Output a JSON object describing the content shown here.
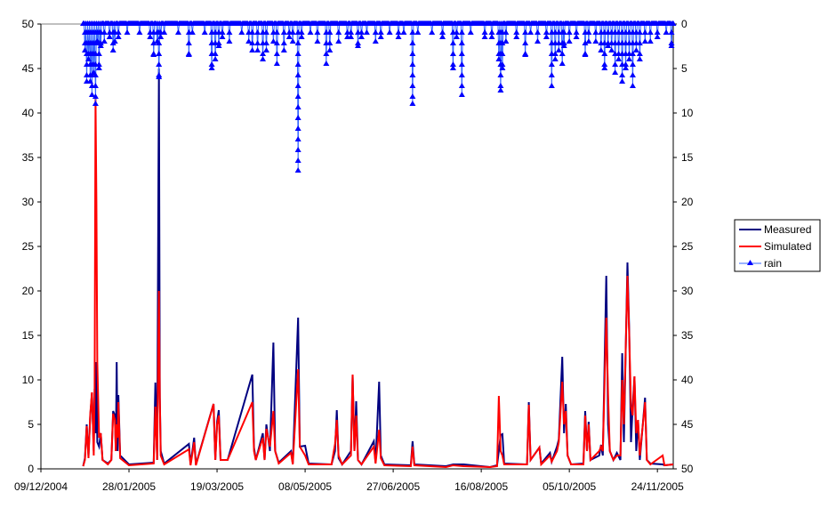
{
  "chart_data": {
    "type": "line",
    "title": "",
    "xlabel": "",
    "ylabel": "",
    "y2label": "",
    "x_unit": "days since 09/12/2004",
    "xlim": [
      0,
      359
    ],
    "ylim": [
      0,
      50
    ],
    "y2lim": [
      0,
      50
    ],
    "y2_inverted": true,
    "x_tick_values": [
      0,
      50,
      100,
      150,
      200,
      250,
      300,
      350
    ],
    "x_tick_labels": [
      "09/12/2004",
      "28/01/2005",
      "19/03/2005",
      "08/05/2005",
      "27/06/2005",
      "16/08/2005",
      "05/10/2005",
      "24/11/2005"
    ],
    "y_ticks": [
      "0",
      "5",
      "10",
      "15",
      "20",
      "25",
      "30",
      "35",
      "40",
      "45",
      "50"
    ],
    "y2_ticks": [
      "0",
      "5",
      "10",
      "15",
      "20",
      "25",
      "30",
      "35",
      "40",
      "45",
      "50"
    ],
    "grid": false,
    "legend_position": "right",
    "legend": [
      "Measured",
      "Simulated",
      "rain"
    ],
    "colors": {
      "measured": "#000080",
      "simulated": "#ff0000",
      "rain_line": "#3366ff",
      "rain_marker": "#0000ff"
    },
    "flow_points_day_measured_simulated": [
      [
        24,
        0.3,
        0.3
      ],
      [
        25,
        1.2,
        1.0
      ],
      [
        26,
        5,
        4.8
      ],
      [
        27,
        1.5,
        1.2
      ],
      [
        28,
        6,
        6.2
      ],
      [
        29,
        8.5,
        8.6
      ],
      [
        30,
        2,
        1.5
      ],
      [
        30.5,
        9,
        8.7
      ],
      [
        31,
        4,
        41.7
      ],
      [
        31.5,
        12,
        30
      ],
      [
        32,
        3,
        12
      ],
      [
        33,
        2.5,
        3.5
      ],
      [
        34,
        4,
        4
      ],
      [
        35,
        1,
        1
      ],
      [
        38,
        0.6,
        0.5
      ],
      [
        40,
        1,
        1
      ],
      [
        41,
        6.5,
        6.2
      ],
      [
        42,
        6,
        5.5
      ],
      [
        42.5,
        2,
        2
      ],
      [
        43,
        12,
        5
      ],
      [
        43.5,
        2,
        3.5
      ],
      [
        44,
        8.3,
        7.5
      ],
      [
        45,
        1.5,
        1.2
      ],
      [
        50,
        0.5,
        0.4
      ],
      [
        64,
        0.7,
        0.6
      ],
      [
        65,
        9.7,
        7
      ],
      [
        66,
        1,
        1
      ],
      [
        67,
        45,
        20
      ],
      [
        67.5,
        8,
        8
      ],
      [
        68,
        2,
        1.5
      ],
      [
        70,
        0.6,
        0.5
      ],
      [
        84,
        2.8,
        2.2
      ],
      [
        85,
        0.5,
        0.4
      ],
      [
        87,
        3.5,
        3
      ],
      [
        88,
        0.5,
        0.4
      ],
      [
        98,
        7.3,
        7.3
      ],
      [
        99,
        1,
        1
      ],
      [
        100,
        5.3,
        5
      ],
      [
        101,
        6.6,
        6
      ],
      [
        102,
        1,
        1
      ],
      [
        106,
        1,
        1
      ],
      [
        120,
        10.6,
        7.5
      ],
      [
        121,
        2.4,
        2
      ],
      [
        122,
        1,
        1
      ],
      [
        126,
        4,
        3.5
      ],
      [
        127,
        1,
        1
      ],
      [
        128,
        5,
        4.5
      ],
      [
        130,
        2,
        2.5
      ],
      [
        132,
        14.2,
        6.5
      ],
      [
        133,
        2,
        2
      ],
      [
        135,
        0.7,
        0.6
      ],
      [
        142,
        2,
        1.8
      ],
      [
        143,
        0.6,
        0.5
      ],
      [
        146,
        17,
        11.2
      ],
      [
        147,
        2.5,
        2.5
      ],
      [
        150,
        2.6,
        1.5
      ],
      [
        152,
        0.6,
        0.5
      ],
      [
        165,
        0.5,
        0.5
      ],
      [
        167,
        2,
        2.8
      ],
      [
        168,
        6.6,
        5.5
      ],
      [
        169,
        1.2,
        1.5
      ],
      [
        171,
        0.5,
        0.5
      ],
      [
        176,
        2,
        1.5
      ],
      [
        177,
        10.6,
        10.6
      ],
      [
        178,
        2,
        2
      ],
      [
        179,
        7.6,
        6
      ],
      [
        180,
        1,
        1
      ],
      [
        182,
        0.5,
        0.5
      ],
      [
        189,
        3.1,
        2.5
      ],
      [
        190,
        0.7,
        0.6
      ],
      [
        192,
        9.8,
        4.4
      ],
      [
        193,
        1.5,
        1.2
      ],
      [
        195,
        0.5,
        0.4
      ],
      [
        210,
        0.4,
        0.3
      ],
      [
        211,
        3.1,
        2.5
      ],
      [
        212,
        0.5,
        0.4
      ],
      [
        230,
        0.3,
        0.2
      ],
      [
        234,
        0.5,
        0.4
      ],
      [
        240,
        0.5,
        0.3
      ],
      [
        255,
        0.2,
        0.2
      ],
      [
        259,
        0.4,
        0.3
      ],
      [
        260,
        2,
        8.2
      ],
      [
        261,
        3.8,
        2
      ],
      [
        262,
        3.9,
        1.5
      ],
      [
        263,
        0.6,
        0.5
      ],
      [
        276,
        0.5,
        0.5
      ],
      [
        277,
        7.5,
        7.2
      ],
      [
        278,
        1,
        1
      ],
      [
        283,
        2.4,
        2.4
      ],
      [
        284,
        0.6,
        0.5
      ],
      [
        289,
        1.8,
        1.5
      ],
      [
        290,
        0.8,
        0.8
      ],
      [
        293,
        2.5,
        2
      ],
      [
        294,
        3.3,
        3
      ],
      [
        296,
        12.6,
        9.8
      ],
      [
        297,
        4,
        5
      ],
      [
        298,
        7.3,
        6.5
      ],
      [
        299,
        1.5,
        1.5
      ],
      [
        301,
        0.5,
        0.5
      ],
      [
        308,
        0.6,
        0.5
      ],
      [
        309,
        6.5,
        6
      ],
      [
        310,
        2,
        2
      ],
      [
        311,
        5.3,
        5
      ],
      [
        312,
        1,
        1
      ],
      [
        317,
        1.5,
        2
      ],
      [
        318,
        2.7,
        2.5
      ],
      [
        319,
        1.5,
        2
      ],
      [
        321,
        21.7,
        17
      ],
      [
        322,
        5,
        8.4
      ],
      [
        323,
        2,
        2
      ],
      [
        325,
        1,
        1
      ],
      [
        327,
        1.8,
        1.5
      ],
      [
        329,
        1,
        1.5
      ],
      [
        330,
        13,
        10
      ],
      [
        331,
        3,
        5
      ],
      [
        333,
        23.2,
        21.7
      ],
      [
        334,
        15.5,
        15
      ],
      [
        335,
        3,
        7
      ],
      [
        336,
        7,
        6
      ],
      [
        337,
        10.4,
        10.4
      ],
      [
        338,
        2,
        4
      ],
      [
        339,
        5.5,
        5.5
      ],
      [
        340,
        1,
        1.5
      ],
      [
        343,
        8,
        7.5
      ],
      [
        344,
        1,
        1
      ],
      [
        346,
        0.6,
        0.5
      ],
      [
        353,
        0.5,
        1.5
      ],
      [
        354,
        0.4,
        0.4
      ],
      [
        359,
        0.5,
        0.5
      ]
    ],
    "rain_spikes_day_mm": [
      [
        25,
        3
      ],
      [
        26,
        6.5
      ],
      [
        27,
        4
      ],
      [
        28,
        6.5
      ],
      [
        29,
        8
      ],
      [
        30,
        5.5
      ],
      [
        31,
        9
      ],
      [
        32,
        2
      ],
      [
        33,
        5
      ],
      [
        34,
        2.5
      ],
      [
        36,
        2
      ],
      [
        39,
        1.5
      ],
      [
        41,
        3
      ],
      [
        42,
        2
      ],
      [
        44,
        1.5
      ],
      [
        49,
        1
      ],
      [
        56,
        1
      ],
      [
        62,
        1.5
      ],
      [
        64,
        3.5
      ],
      [
        66,
        2
      ],
      [
        67,
        6
      ],
      [
        68,
        1.5
      ],
      [
        70,
        1
      ],
      [
        78,
        1
      ],
      [
        84,
        3.5
      ],
      [
        86,
        1
      ],
      [
        93,
        1
      ],
      [
        97,
        5
      ],
      [
        99,
        4
      ],
      [
        101,
        2.5
      ],
      [
        103,
        1.5
      ],
      [
        107,
        2
      ],
      [
        114,
        1
      ],
      [
        118,
        2
      ],
      [
        120,
        3
      ],
      [
        123,
        3
      ],
      [
        126,
        4
      ],
      [
        128,
        3
      ],
      [
        132,
        2
      ],
      [
        134,
        4.5
      ],
      [
        138,
        3
      ],
      [
        141,
        1.5
      ],
      [
        143,
        2
      ],
      [
        146,
        16.5
      ],
      [
        148,
        1.5
      ],
      [
        153,
        1
      ],
      [
        157,
        2
      ],
      [
        162,
        4.5
      ],
      [
        164,
        3
      ],
      [
        169,
        2
      ],
      [
        174,
        1.5
      ],
      [
        176,
        1.5
      ],
      [
        180,
        2.5
      ],
      [
        182,
        1.5
      ],
      [
        185,
        1
      ],
      [
        190,
        2
      ],
      [
        193,
        1.5
      ],
      [
        198,
        1
      ],
      [
        203,
        1.5
      ],
      [
        206,
        1
      ],
      [
        211,
        9
      ],
      [
        214,
        1
      ],
      [
        222,
        1
      ],
      [
        228,
        1.5
      ],
      [
        234,
        5
      ],
      [
        236,
        1.5
      ],
      [
        239,
        8
      ],
      [
        244,
        1
      ],
      [
        252,
        1.5
      ],
      [
        256,
        1.5
      ],
      [
        260,
        4
      ],
      [
        261,
        7.5
      ],
      [
        262,
        5
      ],
      [
        264,
        2
      ],
      [
        270,
        1.5
      ],
      [
        275,
        3.5
      ],
      [
        278,
        1
      ],
      [
        282,
        2
      ],
      [
        287,
        1.5
      ],
      [
        290,
        7
      ],
      [
        292,
        4
      ],
      [
        294,
        3
      ],
      [
        296,
        4.5
      ],
      [
        297,
        2.5
      ],
      [
        300,
        2
      ],
      [
        304,
        1.5
      ],
      [
        309,
        3.5
      ],
      [
        311,
        2
      ],
      [
        315,
        2
      ],
      [
        318,
        3
      ],
      [
        320,
        5
      ],
      [
        322,
        2.5
      ],
      [
        324,
        3
      ],
      [
        326,
        5.5
      ],
      [
        328,
        4
      ],
      [
        330,
        6.5
      ],
      [
        332,
        5
      ],
      [
        334,
        4
      ],
      [
        336,
        7
      ],
      [
        338,
        3
      ],
      [
        340,
        4
      ],
      [
        343,
        2
      ],
      [
        346,
        2
      ],
      [
        350,
        1.5
      ],
      [
        355,
        1
      ],
      [
        358,
        2.5
      ]
    ],
    "rain_record_days": [
      24,
      359
    ]
  }
}
